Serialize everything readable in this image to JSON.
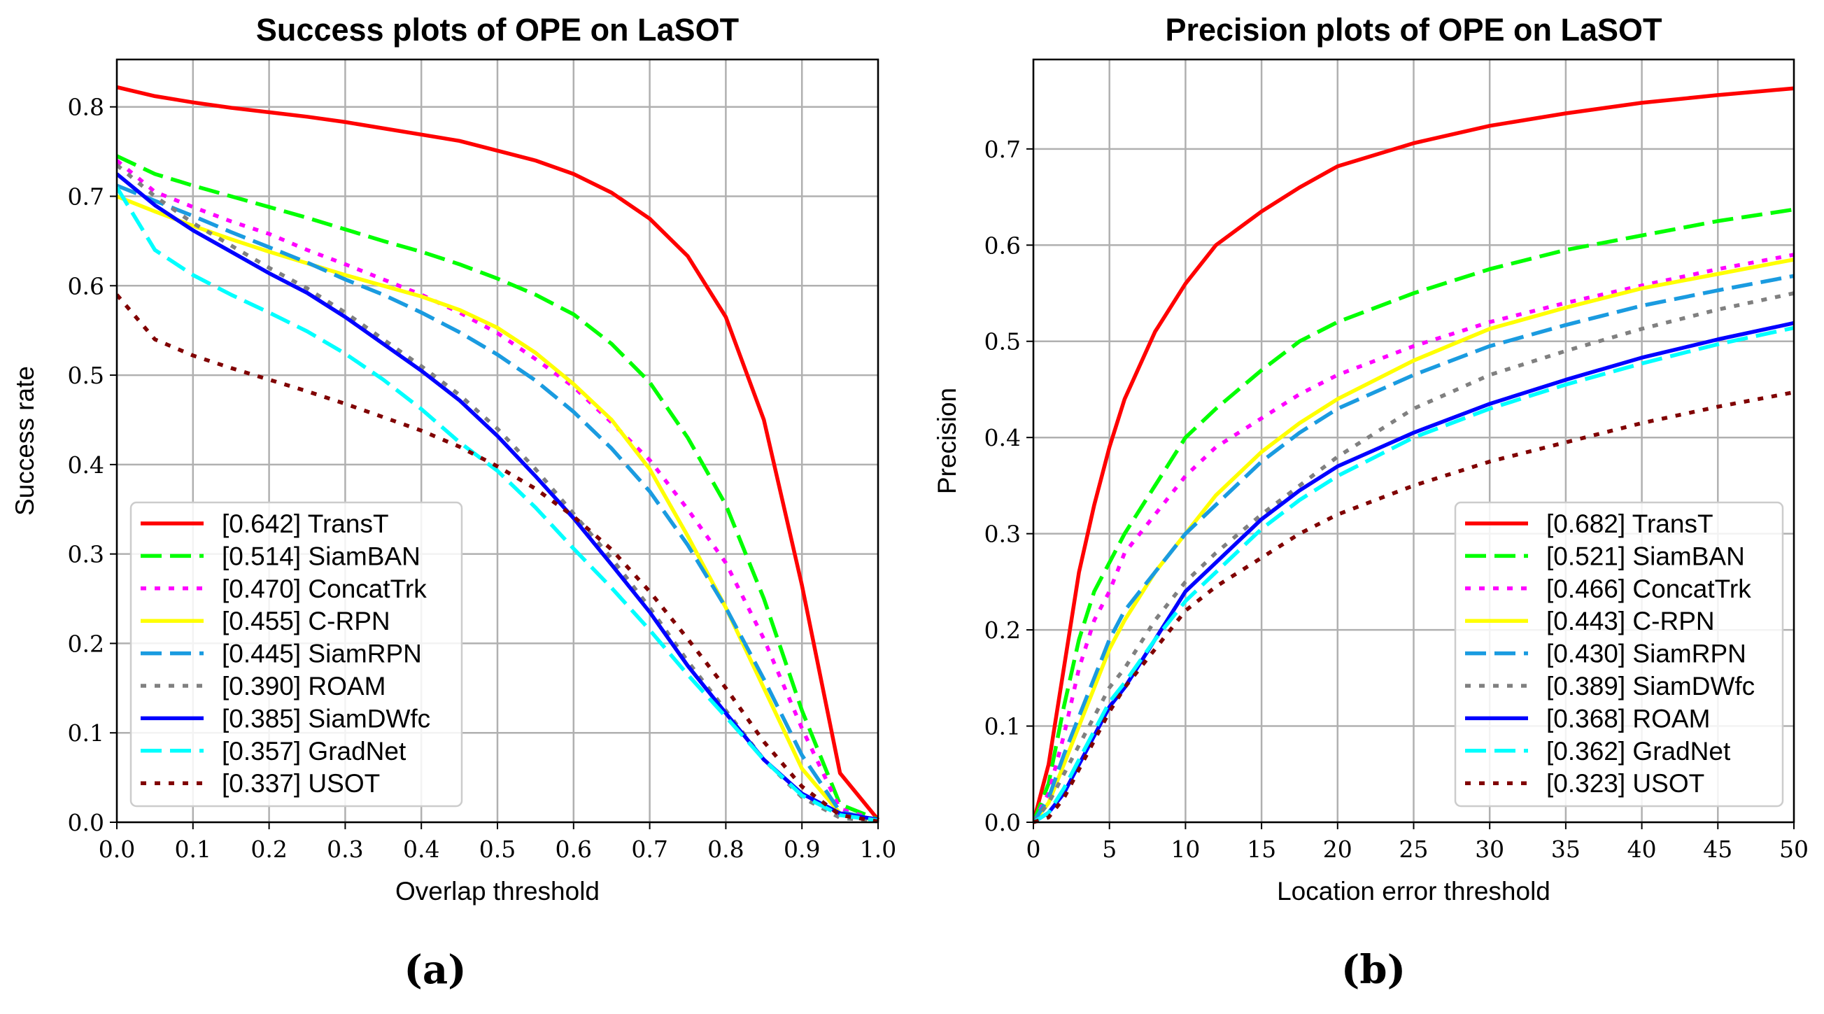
{
  "captions": [
    "(a)",
    "(b)"
  ],
  "chart_data": [
    {
      "type": "line",
      "title": "Success plots of OPE on LaSOT",
      "xlabel": "Overlap threshold",
      "ylabel": "Success rate",
      "xlim": [
        0,
        1
      ],
      "ylim": [
        0,
        0.853
      ],
      "xticks": [
        "0.0",
        "0.1",
        "0.2",
        "0.3",
        "0.4",
        "0.5",
        "0.6",
        "0.7",
        "0.8",
        "0.9",
        "1.0"
      ],
      "xtick_values": [
        0,
        0.1,
        0.2,
        0.3,
        0.4,
        0.5,
        0.6,
        0.7,
        0.8,
        0.9,
        1.0
      ],
      "yticks": [
        "0.0",
        "0.1",
        "0.2",
        "0.3",
        "0.4",
        "0.5",
        "0.6",
        "0.7",
        "0.8"
      ],
      "ytick_values": [
        0,
        0.1,
        0.2,
        0.3,
        0.4,
        0.5,
        0.6,
        0.7,
        0.8
      ],
      "grid": true,
      "legend_position": "lower-left",
      "x": [
        0,
        0.05,
        0.1,
        0.15,
        0.2,
        0.25,
        0.3,
        0.35,
        0.4,
        0.45,
        0.5,
        0.55,
        0.6,
        0.65,
        0.7,
        0.75,
        0.8,
        0.85,
        0.9,
        0.95,
        1.0
      ],
      "series": [
        {
          "name": "[0.642] TransT",
          "color": "#ff0000",
          "style": "solid",
          "values": [
            0.822,
            0.812,
            0.805,
            0.799,
            0.794,
            0.789,
            0.783,
            0.776,
            0.769,
            0.762,
            0.751,
            0.74,
            0.725,
            0.704,
            0.675,
            0.633,
            0.565,
            0.45,
            0.265,
            0.055,
            0.003
          ]
        },
        {
          "name": "[0.514] SiamBAN",
          "color": "#00ff00",
          "style": "dashed",
          "values": [
            0.745,
            0.725,
            0.712,
            0.7,
            0.688,
            0.676,
            0.663,
            0.65,
            0.638,
            0.624,
            0.608,
            0.59,
            0.568,
            0.535,
            0.492,
            0.43,
            0.355,
            0.25,
            0.125,
            0.02,
            0.003
          ]
        },
        {
          "name": "[0.470] ConcatTrk",
          "color": "#ff00ff",
          "style": "dotted",
          "values": [
            0.74,
            0.705,
            0.688,
            0.672,
            0.658,
            0.64,
            0.624,
            0.607,
            0.59,
            0.57,
            0.547,
            0.518,
            0.487,
            0.447,
            0.405,
            0.35,
            0.29,
            0.205,
            0.105,
            0.015,
            0.002
          ]
        },
        {
          "name": "[0.455] C-RPN",
          "color": "#ffff00",
          "style": "solid",
          "values": [
            0.7,
            0.683,
            0.667,
            0.652,
            0.638,
            0.625,
            0.612,
            0.6,
            0.588,
            0.573,
            0.553,
            0.525,
            0.49,
            0.45,
            0.395,
            0.32,
            0.24,
            0.15,
            0.06,
            0.01,
            0.002
          ]
        },
        {
          "name": "[0.445] SiamRPN",
          "color": "#1a9be0",
          "style": "dashed",
          "values": [
            0.712,
            0.695,
            0.678,
            0.66,
            0.643,
            0.626,
            0.607,
            0.59,
            0.57,
            0.548,
            0.523,
            0.494,
            0.459,
            0.418,
            0.37,
            0.31,
            0.24,
            0.16,
            0.075,
            0.012,
            0.002
          ]
        },
        {
          "name": "[0.390] ROAM",
          "color": "#808080",
          "style": "dotted",
          "values": [
            0.735,
            0.7,
            0.67,
            0.645,
            0.62,
            0.597,
            0.57,
            0.54,
            0.51,
            0.478,
            0.44,
            0.395,
            0.345,
            0.295,
            0.24,
            0.18,
            0.125,
            0.07,
            0.028,
            0.005,
            0.001
          ]
        },
        {
          "name": "[0.385] SiamDWfc",
          "color": "#0000ff",
          "style": "solid",
          "values": [
            0.725,
            0.69,
            0.662,
            0.638,
            0.614,
            0.592,
            0.565,
            0.535,
            0.505,
            0.472,
            0.432,
            0.387,
            0.34,
            0.288,
            0.235,
            0.175,
            0.122,
            0.07,
            0.032,
            0.01,
            0.003
          ]
        },
        {
          "name": "[0.357] GradNet",
          "color": "#00ffff",
          "style": "dashed",
          "values": [
            0.71,
            0.64,
            0.612,
            0.59,
            0.57,
            0.549,
            0.524,
            0.495,
            0.462,
            0.425,
            0.393,
            0.352,
            0.306,
            0.262,
            0.215,
            0.165,
            0.118,
            0.07,
            0.03,
            0.008,
            0.002
          ]
        },
        {
          "name": "[0.337] USOT",
          "color": "#800000",
          "style": "dotted",
          "values": [
            0.59,
            0.54,
            0.522,
            0.508,
            0.495,
            0.482,
            0.468,
            0.453,
            0.438,
            0.42,
            0.398,
            0.373,
            0.342,
            0.305,
            0.258,
            0.205,
            0.15,
            0.09,
            0.04,
            0.008,
            0.001
          ]
        }
      ]
    },
    {
      "type": "line",
      "title": "Precision plots of OPE on LaSOT",
      "xlabel": "Location error threshold",
      "ylabel": "Precision",
      "xlim": [
        0,
        50
      ],
      "ylim": [
        0,
        0.793
      ],
      "xticks": [
        "0",
        "5",
        "10",
        "15",
        "20",
        "25",
        "30",
        "35",
        "40",
        "45",
        "50"
      ],
      "xtick_values": [
        0,
        5,
        10,
        15,
        20,
        25,
        30,
        35,
        40,
        45,
        50
      ],
      "yticks": [
        "0.0",
        "0.1",
        "0.2",
        "0.3",
        "0.4",
        "0.5",
        "0.6",
        "0.7"
      ],
      "ytick_values": [
        0,
        0.1,
        0.2,
        0.3,
        0.4,
        0.5,
        0.6,
        0.7
      ],
      "grid": true,
      "legend_position": "lower-right",
      "x": [
        0,
        1,
        2,
        3,
        4,
        5,
        6,
        8,
        10,
        12,
        15,
        17.5,
        20,
        25,
        30,
        35,
        40,
        45,
        50
      ],
      "series": [
        {
          "name": "[0.682] TransT",
          "color": "#ff0000",
          "style": "solid",
          "values": [
            0,
            0.06,
            0.16,
            0.26,
            0.33,
            0.39,
            0.44,
            0.51,
            0.56,
            0.6,
            0.635,
            0.66,
            0.682,
            0.706,
            0.724,
            0.737,
            0.748,
            0.756,
            0.763
          ]
        },
        {
          "name": "[0.521] SiamBAN",
          "color": "#00ff00",
          "style": "dashed",
          "values": [
            0,
            0.04,
            0.12,
            0.19,
            0.24,
            0.27,
            0.3,
            0.35,
            0.4,
            0.43,
            0.47,
            0.5,
            0.52,
            0.55,
            0.575,
            0.595,
            0.61,
            0.625,
            0.637
          ]
        },
        {
          "name": "[0.466] ConcatTrk",
          "color": "#ff00ff",
          "style": "dotted",
          "values": [
            0,
            0.03,
            0.09,
            0.16,
            0.21,
            0.24,
            0.28,
            0.32,
            0.36,
            0.39,
            0.42,
            0.445,
            0.465,
            0.495,
            0.52,
            0.54,
            0.558,
            0.575,
            0.59
          ]
        },
        {
          "name": "[0.443] C-RPN",
          "color": "#ffff00",
          "style": "solid",
          "values": [
            0,
            0.02,
            0.06,
            0.1,
            0.14,
            0.18,
            0.21,
            0.26,
            0.3,
            0.34,
            0.385,
            0.415,
            0.44,
            0.48,
            0.513,
            0.535,
            0.555,
            0.57,
            0.585
          ]
        },
        {
          "name": "[0.430] SiamRPN",
          "color": "#1a9be0",
          "style": "dashed",
          "values": [
            0,
            0.025,
            0.07,
            0.11,
            0.15,
            0.19,
            0.22,
            0.26,
            0.3,
            0.33,
            0.375,
            0.405,
            0.43,
            0.465,
            0.495,
            0.517,
            0.537,
            0.553,
            0.568
          ]
        },
        {
          "name": "[0.389] SiamDWfc",
          "color": "#808080",
          "style": "dotted",
          "values": [
            0,
            0.02,
            0.05,
            0.08,
            0.11,
            0.14,
            0.16,
            0.21,
            0.25,
            0.28,
            0.32,
            0.35,
            0.38,
            0.43,
            0.465,
            0.49,
            0.513,
            0.533,
            0.55
          ]
        },
        {
          "name": "[0.368] ROAM",
          "color": "#0000ff",
          "style": "solid",
          "values": [
            0,
            0.01,
            0.03,
            0.06,
            0.09,
            0.12,
            0.14,
            0.19,
            0.24,
            0.27,
            0.315,
            0.345,
            0.37,
            0.405,
            0.435,
            0.46,
            0.483,
            0.502,
            0.519
          ]
        },
        {
          "name": "[0.362] GradNet",
          "color": "#00ffff",
          "style": "dashed",
          "values": [
            0,
            0.01,
            0.035,
            0.065,
            0.095,
            0.125,
            0.145,
            0.19,
            0.23,
            0.26,
            0.305,
            0.335,
            0.36,
            0.4,
            0.43,
            0.455,
            0.477,
            0.497,
            0.514
          ]
        },
        {
          "name": "[0.323] USOT",
          "color": "#800000",
          "style": "dotted",
          "values": [
            0,
            0.005,
            0.025,
            0.055,
            0.085,
            0.115,
            0.14,
            0.18,
            0.22,
            0.245,
            0.275,
            0.3,
            0.32,
            0.35,
            0.375,
            0.395,
            0.415,
            0.432,
            0.447
          ]
        }
      ]
    }
  ]
}
